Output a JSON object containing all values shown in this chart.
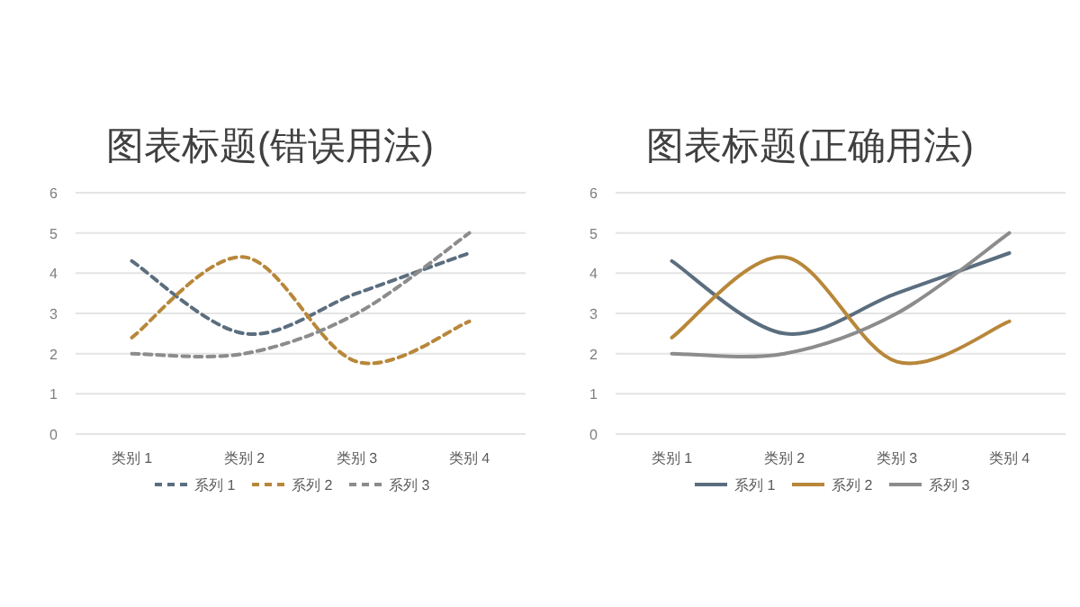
{
  "chart_data": [
    {
      "type": "line",
      "title": "图表标题(错误用法)",
      "categories": [
        "类别 1",
        "类别 2",
        "类别 3",
        "类别 4"
      ],
      "ylim": [
        0,
        6
      ],
      "yticks": [
        0,
        1,
        2,
        3,
        4,
        5,
        6
      ],
      "grid": "y",
      "legend": "bottom",
      "line_style": "dashed",
      "series": [
        {
          "name": "系列 1",
          "color": "#5b6e7f",
          "values": [
            4.3,
            2.5,
            3.5,
            4.5
          ]
        },
        {
          "name": "系列 2",
          "color": "#b8873a",
          "values": [
            2.4,
            4.4,
            1.8,
            2.8
          ]
        },
        {
          "name": "系列 3",
          "color": "#8c8c8c",
          "values": [
            2,
            2,
            3,
            5
          ]
        }
      ]
    },
    {
      "type": "line",
      "title": "图表标题(正确用法)",
      "categories": [
        "类别 1",
        "类别 2",
        "类别 3",
        "类别 4"
      ],
      "ylim": [
        0,
        6
      ],
      "yticks": [
        0,
        1,
        2,
        3,
        4,
        5,
        6
      ],
      "grid": "y",
      "legend": "bottom",
      "line_style": "solid",
      "series": [
        {
          "name": "系列 1",
          "color": "#5b6e7f",
          "values": [
            4.3,
            2.5,
            3.5,
            4.5
          ]
        },
        {
          "name": "系列 2",
          "color": "#b8873a",
          "values": [
            2.4,
            4.4,
            1.8,
            2.8
          ]
        },
        {
          "name": "系列 3",
          "color": "#8c8c8c",
          "values": [
            2,
            2,
            3,
            5
          ]
        }
      ]
    }
  ]
}
